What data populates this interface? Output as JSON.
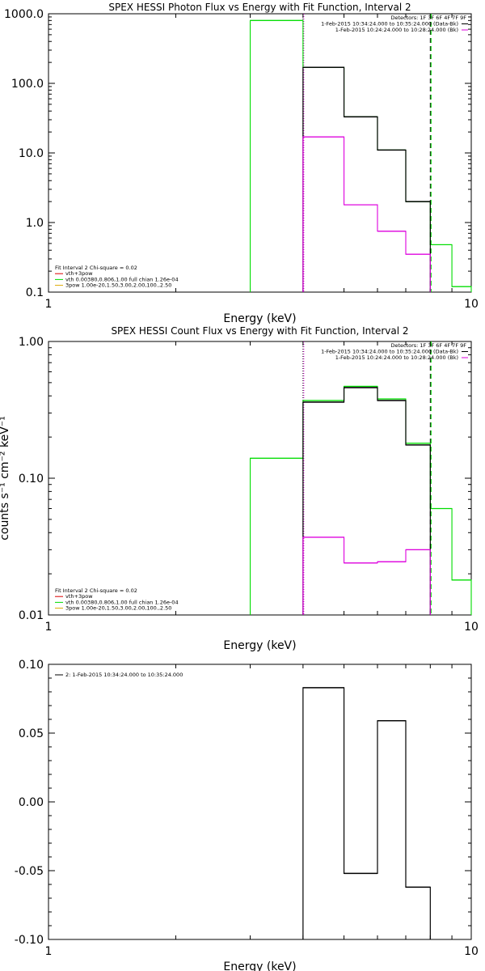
{
  "colors": {
    "total": "#000000",
    "vth": "#00dd00",
    "bkg": "#dd00dd",
    "red": "#dd0000",
    "orange": "#ddaa00"
  },
  "chart_data": [
    {
      "type": "line",
      "title": "SPEX HESSI Photon Flux vs Energy with Fit Function, Interval 2",
      "xlabel": "Energy (keV)",
      "ylabel": "",
      "xscale": "log",
      "yscale": "log",
      "xlim": [
        1,
        10
      ],
      "ylim": [
        0.1,
        1000
      ],
      "xticks": [
        "1",
        "10"
      ],
      "yticks": [
        {
          "v": 1000,
          "label": "1000.0"
        },
        {
          "v": 100,
          "label": "100.0"
        },
        {
          "v": 10,
          "label": "10.0"
        },
        {
          "v": 1,
          "label": "1.0"
        },
        {
          "v": 0.1,
          "label": "0.1"
        }
      ],
      "bin_edges": [
        3,
        4,
        5,
        6,
        7,
        8,
        9,
        10
      ],
      "series": [
        {
          "key": "vth",
          "values": [
            800,
            170,
            33,
            11,
            2,
            0.48,
            0.12
          ]
        },
        {
          "key": "total",
          "start": 1,
          "values": [
            170,
            33,
            11,
            2
          ]
        },
        {
          "key": "bkg",
          "start": 1,
          "values": [
            17,
            1.8,
            0.75,
            0.35
          ]
        }
      ],
      "vlines": [
        {
          "x": 4,
          "style": "dotted",
          "color": "total"
        },
        {
          "x": 4,
          "style": "dotted",
          "color": "bkg"
        },
        {
          "x": 8,
          "style": "dashed",
          "color": "total"
        },
        {
          "x": 8,
          "style": "dashed",
          "color": "vth"
        }
      ],
      "header": [
        {
          "text": "Detectors: 1F 3F 6F 4F 7F 9F",
          "color": "total",
          "line": false
        },
        {
          "text": "1-Feb-2015 10:34:24.000 to 10:35:24.000 (Data-Bk)",
          "color": "total",
          "line": true
        },
        {
          "text": "1-Feb-2015 10:24:24.000 to 10:28:24.000 (Bk)",
          "color": "bkg",
          "line": true
        }
      ],
      "legend": [
        {
          "text": "Fit Interval 2   Chi-square = 0.02",
          "color": "total",
          "line": false
        },
        {
          "text": "vth+3pow",
          "color": "red",
          "line": true
        },
        {
          "text": "vth 0.00380,0.806,1.00  full chian 1.26e-04",
          "color": "vth",
          "line": true
        },
        {
          "text": "3pow 1.00e-20,1.50,3.00,2.00,100.,2.50",
          "color": "orange",
          "line": true
        }
      ]
    },
    {
      "type": "line",
      "title": "SPEX HESSI Count Flux vs Energy with Fit Function, Interval 2",
      "xlabel": "Energy (keV)",
      "ylabel": "counts s⁻¹ cm⁻² keV⁻¹",
      "xscale": "log",
      "yscale": "log",
      "xlim": [
        1,
        10
      ],
      "ylim": [
        0.01,
        1
      ],
      "xticks": [
        "1",
        "10"
      ],
      "yticks": [
        {
          "v": 1,
          "label": "1.00"
        },
        {
          "v": 0.1,
          "label": "0.10"
        },
        {
          "v": 0.01,
          "label": "0.01"
        }
      ],
      "bin_edges": [
        3,
        4,
        5,
        6,
        7,
        8,
        9,
        10
      ],
      "series": [
        {
          "key": "vth",
          "values": [
            0.14,
            0.37,
            0.47,
            0.38,
            0.18,
            0.06,
            0.018
          ]
        },
        {
          "key": "total",
          "start": 1,
          "values": [
            0.36,
            0.46,
            0.37,
            0.175
          ]
        },
        {
          "key": "bkg",
          "start": 1,
          "values": [
            0.037,
            0.024,
            0.0245,
            0.03
          ]
        }
      ],
      "vlines": [
        {
          "x": 4,
          "style": "dotted",
          "color": "total"
        },
        {
          "x": 4,
          "style": "dotted",
          "color": "bkg"
        },
        {
          "x": 8,
          "style": "dashed",
          "color": "total"
        },
        {
          "x": 8,
          "style": "dashed",
          "color": "vth"
        }
      ],
      "header": [
        {
          "text": "Detectors: 1F 3F 6F 4F 7F 9F",
          "color": "total",
          "line": false
        },
        {
          "text": "1-Feb-2015 10:34:24.000 to 10:35:24.000 (Data-Bk)",
          "color": "total",
          "line": true
        },
        {
          "text": "1-Feb-2015 10:24:24.000 to 10:28:24.000 (Bk)",
          "color": "bkg",
          "line": true
        }
      ],
      "legend": [
        {
          "text": "Fit Interval 2   Chi-square = 0.02",
          "color": "total",
          "line": false
        },
        {
          "text": "vth+3pow",
          "color": "red",
          "line": true
        },
        {
          "text": "vth 0.00380,0.806,1.00  full chian 1.26e-04",
          "color": "vth",
          "line": true
        },
        {
          "text": "3pow 1.00e-20,1.50,3.00,2.00,100.,2.50",
          "color": "orange",
          "line": true
        }
      ]
    },
    {
      "type": "line",
      "title": "",
      "xlabel": "Energy (keV)",
      "ylabel": "",
      "xscale": "log",
      "yscale": "linear",
      "xlim": [
        1,
        10
      ],
      "ylim": [
        -0.1,
        0.1
      ],
      "xticks": [
        "1",
        "10"
      ],
      "yticks": [
        {
          "v": 0.1,
          "label": "0.10"
        },
        {
          "v": 0.05,
          "label": "0.05"
        },
        {
          "v": 0,
          "label": "0.00"
        },
        {
          "v": -0.05,
          "label": "-0.05"
        },
        {
          "v": -0.1,
          "label": "-0.10"
        }
      ],
      "bin_edges": [
        4,
        5,
        6,
        7,
        8
      ],
      "series": [
        {
          "key": "total",
          "values": [
            0.083,
            -0.052,
            0.059,
            -0.062
          ]
        }
      ],
      "legend": [
        {
          "text": "2:  1-Feb-2015 10:34:24.000 to 10:35:24.000",
          "color": "total",
          "line": true
        }
      ]
    }
  ]
}
